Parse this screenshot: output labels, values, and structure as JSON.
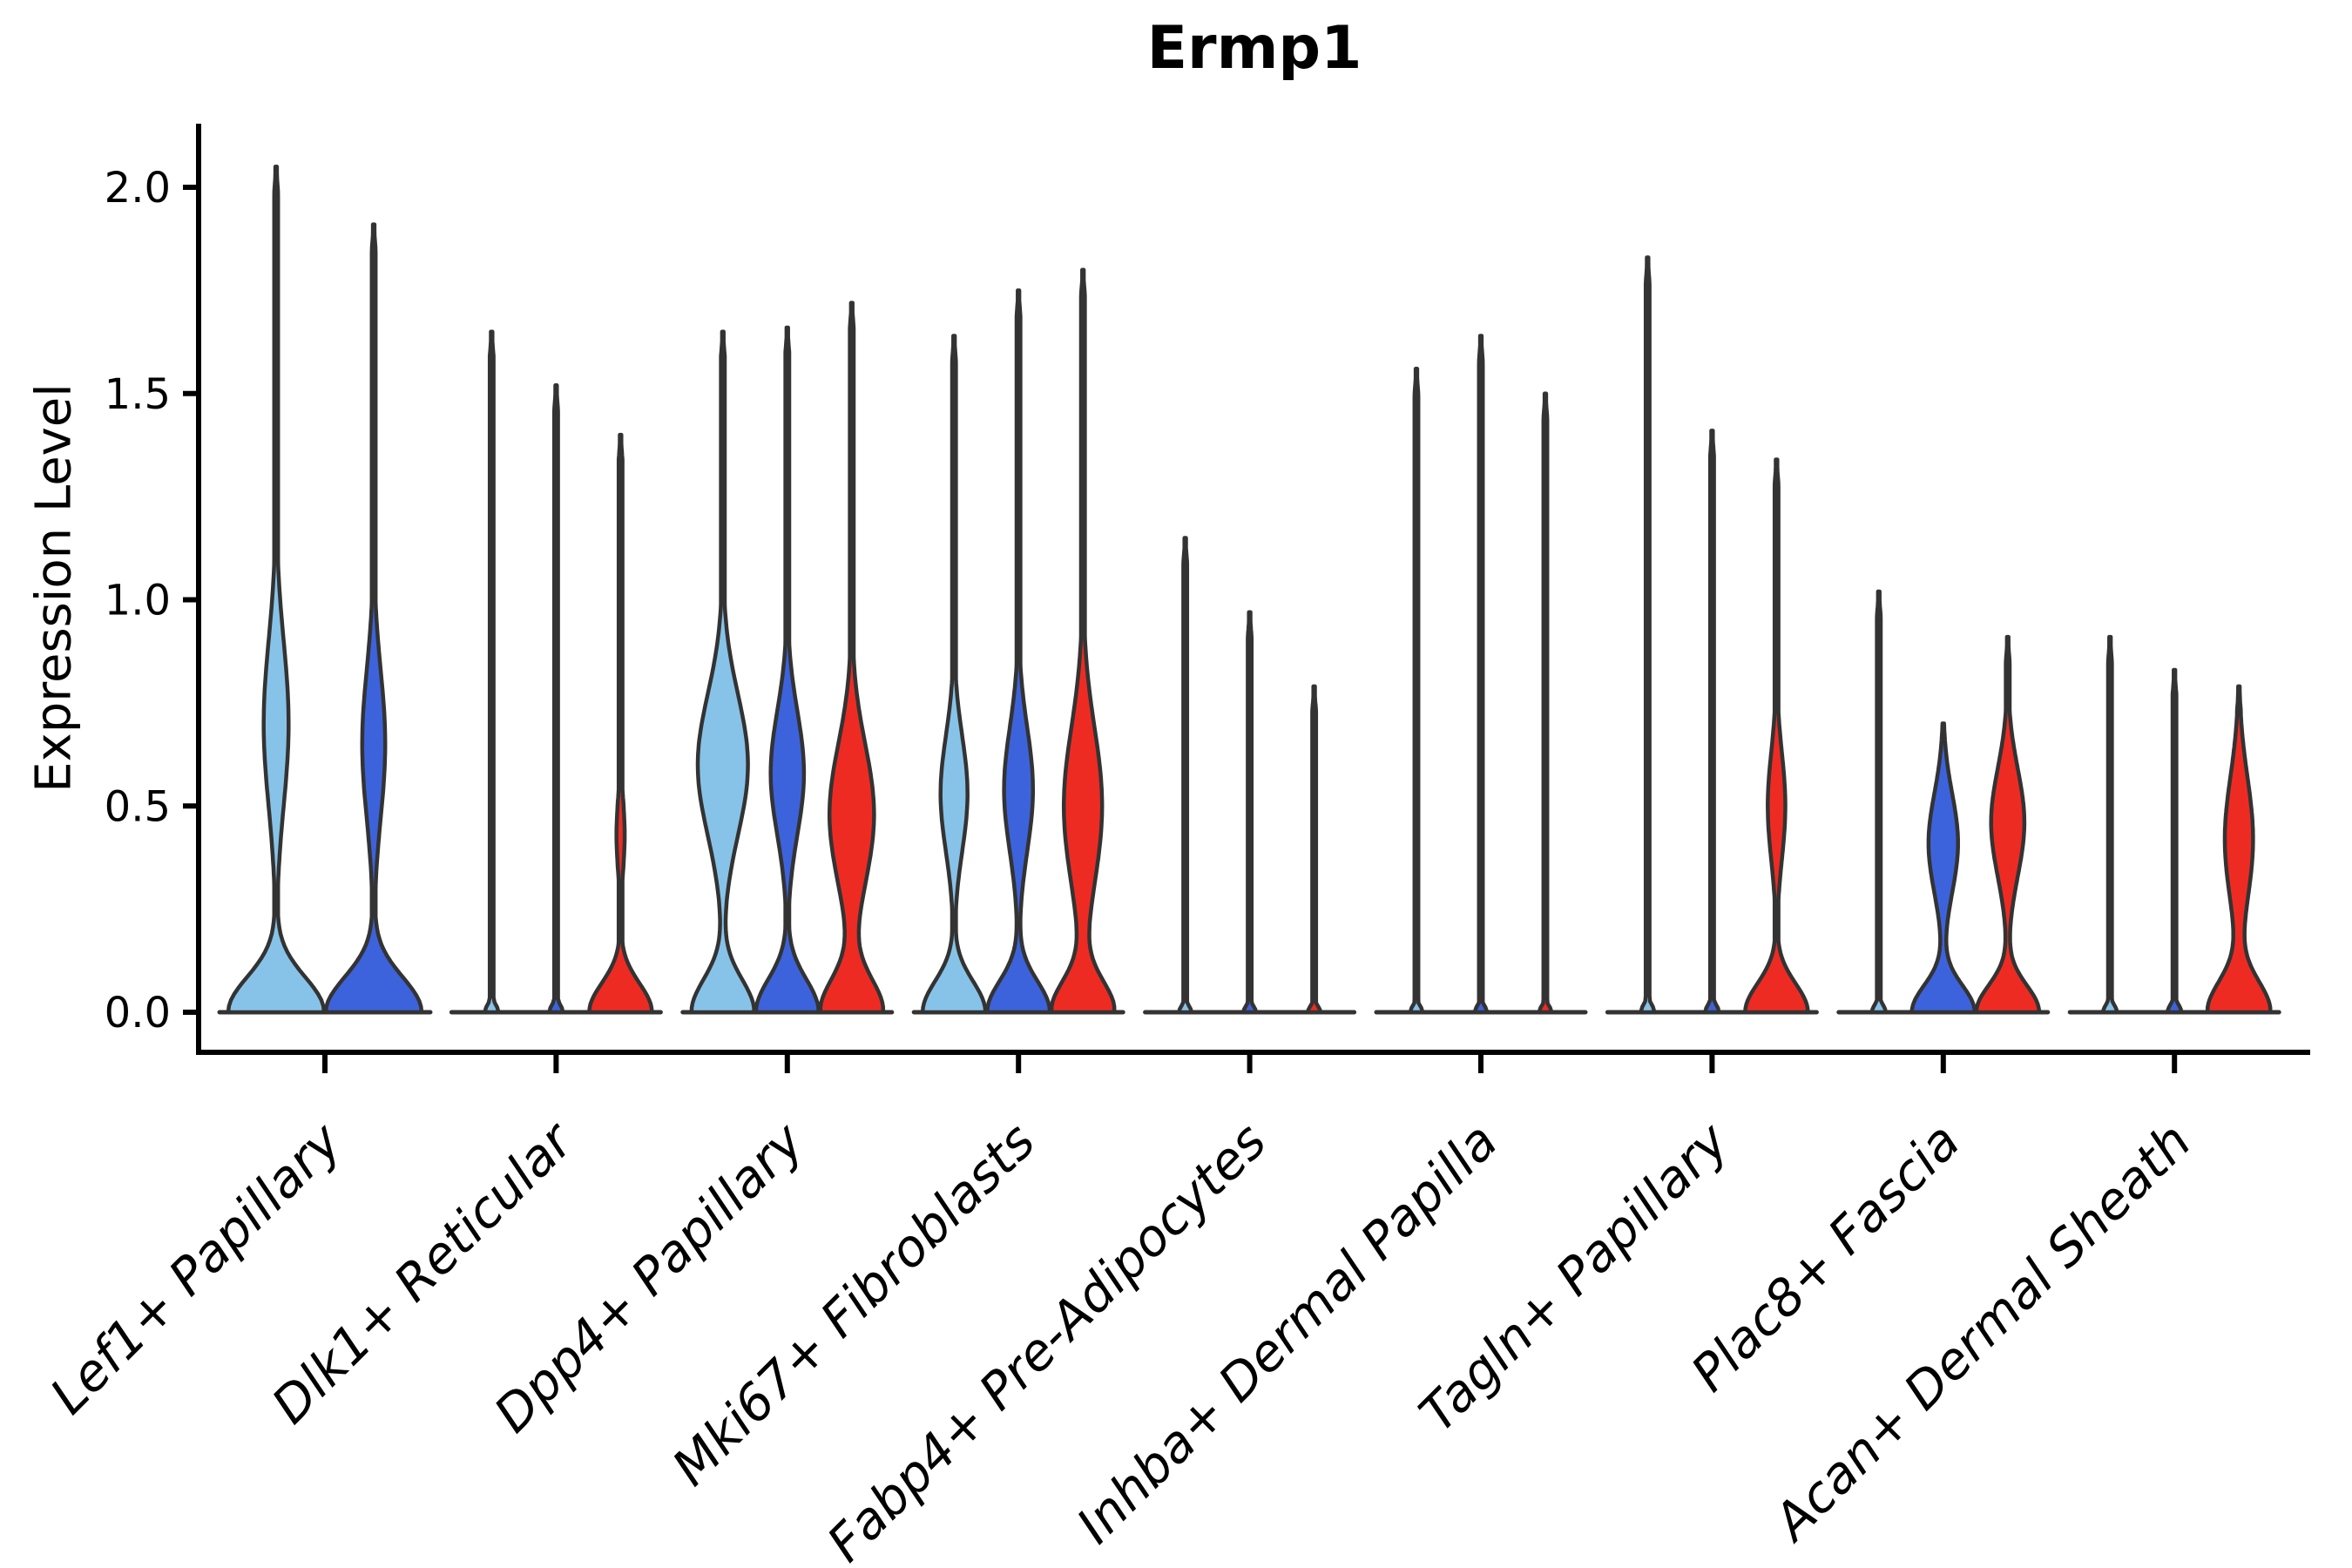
{
  "figure": {
    "title": "Ermp1",
    "y_axis_label": "Expression Level"
  },
  "palette": {
    "light_blue": "#87C3E8",
    "blue": "#3D63DC",
    "red": "#EE2B23",
    "outline": "#333333",
    "axis": "#000000",
    "text": "#000000",
    "background": "#ffffff"
  },
  "chart_data": {
    "type": "violin",
    "title": "Ermp1",
    "xlabel": "",
    "ylabel": "Expression Level",
    "yticks": [
      "0.0",
      "0.5",
      "1.0",
      "1.5",
      "2.0"
    ],
    "ytick_values": [
      0.0,
      0.5,
      1.0,
      1.5,
      2.0
    ],
    "ylim": [
      -0.1,
      2.15
    ],
    "grid": false,
    "legend_position": "none",
    "x_tick_rotation_deg": 45,
    "splits": [
      "light_blue",
      "blue",
      "red"
    ],
    "categories": [
      "Lef1+ Papillary",
      "Dlk1+ Reticular",
      "Dpp4+ Papillary",
      "Mki67+ Fibroblasts",
      "Fabp4+ Pre-Adipocytes",
      "Inhba+ Dermal Papilla",
      "Tagln+ Papillary",
      "Plac8+ Fascia",
      "Acan+ Dermal Sheath"
    ],
    "groups": [
      {
        "category": "Lef1+ Papillary",
        "violins": [
          {
            "split": "light_blue",
            "max_expression": 2.05,
            "bulge": {
              "center": 0.7,
              "sigma": 0.2,
              "amp": 0.26
            },
            "base": {
              "sigma": 0.085,
              "amp": 1.0
            }
          },
          {
            "split": "blue",
            "max_expression": 1.91,
            "bulge": {
              "center": 0.65,
              "sigma": 0.18,
              "amp": 0.24
            },
            "base": {
              "sigma": 0.085,
              "amp": 1.0
            }
          }
        ]
      },
      {
        "category": "Dlk1+ Reticular",
        "violins": [
          {
            "split": "light_blue",
            "max_expression": 1.65,
            "bulge": null,
            "base": {
              "sigma": 0.018,
              "amp": 0.22
            }
          },
          {
            "split": "blue",
            "max_expression": 1.52,
            "bulge": null,
            "base": {
              "sigma": 0.018,
              "amp": 0.22
            }
          },
          {
            "split": "red",
            "max_expression": 1.4,
            "bulge": {
              "center": 0.43,
              "sigma": 0.09,
              "amp": 0.13
            },
            "base": {
              "sigma": 0.07,
              "amp": 1.0
            }
          }
        ]
      },
      {
        "category": "Dpp4+ Papillary",
        "violins": [
          {
            "split": "light_blue",
            "max_expression": 1.65,
            "bulge": {
              "center": 0.6,
              "sigma": 0.17,
              "amp": 0.8
            },
            "base": {
              "sigma": 0.08,
              "amp": 1.0
            }
          },
          {
            "split": "blue",
            "max_expression": 1.66,
            "bulge": {
              "center": 0.58,
              "sigma": 0.15,
              "amp": 0.53
            },
            "base": {
              "sigma": 0.08,
              "amp": 1.0
            }
          },
          {
            "split": "red",
            "max_expression": 1.72,
            "bulge": {
              "center": 0.48,
              "sigma": 0.17,
              "amp": 0.71
            },
            "base": {
              "sigma": 0.08,
              "amp": 1.0
            }
          }
        ]
      },
      {
        "category": "Mki67+ Fibroblasts",
        "violins": [
          {
            "split": "light_blue",
            "max_expression": 1.64,
            "bulge": {
              "center": 0.53,
              "sigma": 0.14,
              "amp": 0.43
            },
            "base": {
              "sigma": 0.075,
              "amp": 1.0
            }
          },
          {
            "split": "blue",
            "max_expression": 1.75,
            "bulge": {
              "center": 0.54,
              "sigma": 0.15,
              "amp": 0.46
            },
            "base": {
              "sigma": 0.075,
              "amp": 1.0
            }
          },
          {
            "split": "red",
            "max_expression": 1.8,
            "bulge": {
              "center": 0.5,
              "sigma": 0.19,
              "amp": 0.61
            },
            "base": {
              "sigma": 0.075,
              "amp": 1.0
            }
          }
        ]
      },
      {
        "category": "Fabp4+ Pre-Adipocytes",
        "violins": [
          {
            "split": "light_blue",
            "max_expression": 1.15,
            "bulge": null,
            "base": {
              "sigma": 0.015,
              "amp": 0.2
            }
          },
          {
            "split": "blue",
            "max_expression": 0.97,
            "bulge": null,
            "base": {
              "sigma": 0.015,
              "amp": 0.2
            }
          },
          {
            "split": "red",
            "max_expression": 0.79,
            "bulge": null,
            "base": {
              "sigma": 0.015,
              "amp": 0.2
            }
          }
        ]
      },
      {
        "category": "Inhba+ Dermal Papilla",
        "violins": [
          {
            "split": "light_blue",
            "max_expression": 1.56,
            "bulge": null,
            "base": {
              "sigma": 0.015,
              "amp": 0.2
            }
          },
          {
            "split": "blue",
            "max_expression": 1.64,
            "bulge": null,
            "base": {
              "sigma": 0.015,
              "amp": 0.2
            }
          },
          {
            "split": "red",
            "max_expression": 1.5,
            "bulge": null,
            "base": {
              "sigma": 0.015,
              "amp": 0.2
            }
          }
        ]
      },
      {
        "category": "Tagln+ Papillary",
        "violins": [
          {
            "split": "light_blue",
            "max_expression": 1.83,
            "bulge": null,
            "base": {
              "sigma": 0.018,
              "amp": 0.22
            }
          },
          {
            "split": "blue",
            "max_expression": 1.41,
            "bulge": null,
            "base": {
              "sigma": 0.018,
              "amp": 0.22
            }
          },
          {
            "split": "red",
            "max_expression": 1.34,
            "bulge": {
              "center": 0.5,
              "sigma": 0.13,
              "amp": 0.28
            },
            "base": {
              "sigma": 0.07,
              "amp": 1.0
            }
          }
        ]
      },
      {
        "category": "Plac8+ Fascia",
        "violins": [
          {
            "split": "light_blue",
            "max_expression": 1.02,
            "bulge": null,
            "base": {
              "sigma": 0.018,
              "amp": 0.22
            }
          },
          {
            "split": "blue",
            "max_expression": 0.7,
            "bulge": {
              "center": 0.41,
              "sigma": 0.12,
              "amp": 0.47
            },
            "base": {
              "sigma": 0.065,
              "amp": 1.0
            }
          },
          {
            "split": "red",
            "max_expression": 0.91,
            "bulge": {
              "center": 0.46,
              "sigma": 0.13,
              "amp": 0.53
            },
            "base": {
              "sigma": 0.065,
              "amp": 1.0
            }
          }
        ]
      },
      {
        "category": "Acan+ Dermal Sheath",
        "violins": [
          {
            "split": "light_blue",
            "max_expression": 0.91,
            "bulge": null,
            "base": {
              "sigma": 0.018,
              "amp": 0.22
            }
          },
          {
            "split": "blue",
            "max_expression": 0.83,
            "bulge": null,
            "base": {
              "sigma": 0.018,
              "amp": 0.22
            }
          },
          {
            "split": "red",
            "max_expression": 0.79,
            "bulge": {
              "center": 0.42,
              "sigma": 0.15,
              "amp": 0.45
            },
            "base": {
              "sigma": 0.075,
              "amp": 1.0
            }
          }
        ]
      }
    ]
  }
}
